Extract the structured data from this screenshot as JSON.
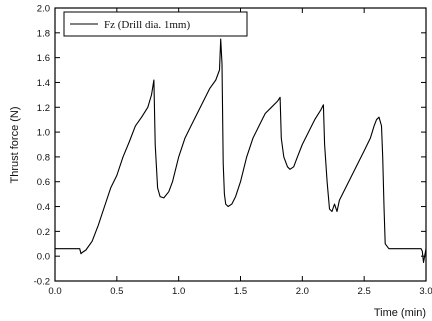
{
  "chart_data": {
    "type": "line",
    "title": "",
    "xlabel": "Time (min)",
    "ylabel": "Thrust force (N)",
    "xlim": [
      0.0,
      3.0
    ],
    "ylim": [
      -0.2,
      2.0
    ],
    "xticks": [
      "0.0",
      "0.5",
      "1.0",
      "1.5",
      "2.0",
      "2.5",
      "3.0"
    ],
    "xtick_values": [
      0.0,
      0.5,
      1.0,
      1.5,
      2.0,
      2.5,
      3.0
    ],
    "yticks": [
      "-0.2",
      "0.0",
      "0.2",
      "0.4",
      "0.6",
      "0.8",
      "1.0",
      "1.2",
      "1.4",
      "1.6",
      "1.8",
      "2.0"
    ],
    "ytick_values": [
      -0.2,
      0.0,
      0.2,
      0.4,
      0.6,
      0.8,
      1.0,
      1.2,
      1.4,
      1.6,
      1.8,
      2.0
    ],
    "grid": false,
    "legend_position": "top-left",
    "series": [
      {
        "name": "Fz (Drill dia. 1mm)",
        "color": "#000000",
        "x": [
          0.0,
          0.2,
          0.21,
          0.22,
          0.25,
          0.3,
          0.35,
          0.4,
          0.45,
          0.5,
          0.55,
          0.6,
          0.65,
          0.7,
          0.75,
          0.78,
          0.8,
          0.81,
          0.83,
          0.85,
          0.88,
          0.92,
          0.95,
          1.0,
          1.05,
          1.1,
          1.15,
          1.2,
          1.25,
          1.3,
          1.33,
          1.34,
          1.35,
          1.36,
          1.37,
          1.38,
          1.4,
          1.43,
          1.46,
          1.5,
          1.55,
          1.6,
          1.65,
          1.7,
          1.75,
          1.8,
          1.82,
          1.83,
          1.85,
          1.88,
          1.9,
          1.93,
          1.96,
          2.0,
          2.05,
          2.1,
          2.15,
          2.17,
          2.18,
          2.2,
          2.22,
          2.24,
          2.26,
          2.28,
          2.3,
          2.35,
          2.4,
          2.45,
          2.5,
          2.55,
          2.58,
          2.6,
          2.62,
          2.64,
          2.65,
          2.66,
          2.67,
          2.7,
          2.8,
          2.9,
          2.96,
          2.97,
          2.98,
          3.0
        ],
        "y": [
          0.06,
          0.06,
          0.02,
          0.03,
          0.05,
          0.12,
          0.25,
          0.4,
          0.55,
          0.65,
          0.8,
          0.92,
          1.05,
          1.12,
          1.2,
          1.3,
          1.42,
          0.9,
          0.55,
          0.48,
          0.47,
          0.52,
          0.6,
          0.8,
          0.95,
          1.05,
          1.15,
          1.25,
          1.35,
          1.42,
          1.5,
          1.75,
          1.55,
          0.75,
          0.5,
          0.42,
          0.4,
          0.42,
          0.48,
          0.6,
          0.8,
          0.95,
          1.05,
          1.15,
          1.2,
          1.25,
          1.28,
          0.95,
          0.8,
          0.72,
          0.7,
          0.72,
          0.8,
          0.9,
          1.0,
          1.1,
          1.18,
          1.22,
          0.9,
          0.6,
          0.38,
          0.36,
          0.42,
          0.36,
          0.45,
          0.55,
          0.65,
          0.75,
          0.85,
          0.95,
          1.05,
          1.1,
          1.12,
          1.05,
          0.8,
          0.4,
          0.1,
          0.06,
          0.06,
          0.06,
          0.06,
          0.04,
          -0.05,
          0.06
        ]
      }
    ]
  }
}
